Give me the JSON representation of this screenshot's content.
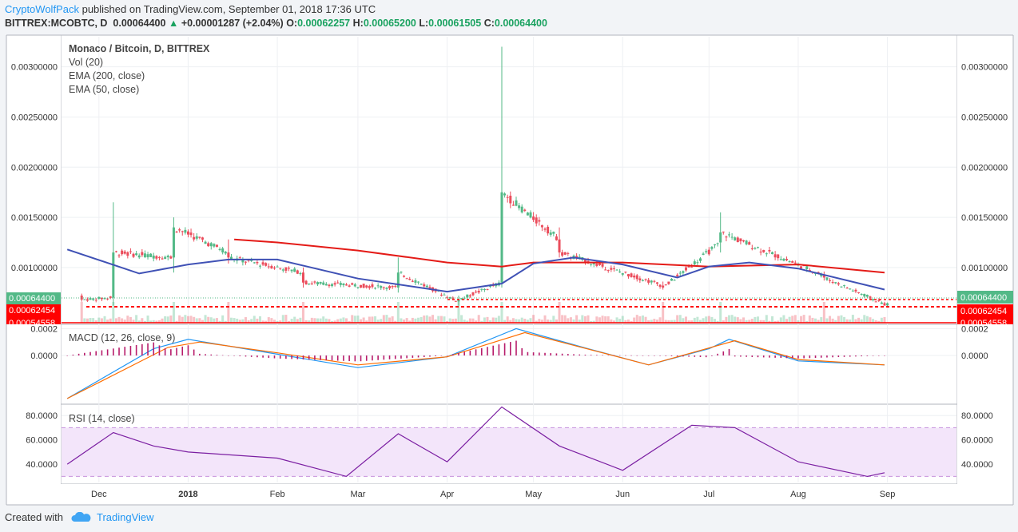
{
  "header": {
    "author": "CryptoWolfPack",
    "published_text": "published on TradingView.com, September 01, 2018 17:36 UTC",
    "symbol": "BITTREX:MCOBTC, D",
    "last": "0.00064400",
    "change": "+0.00001287 (+2.04%)",
    "o_label": "O:",
    "o_value": "0.00062257",
    "h_label": "H:",
    "h_value": "0.00065200",
    "l_label": "L:",
    "l_value": "0.00061505",
    "c_label": "C:",
    "c_value": "0.00064400"
  },
  "legend": {
    "title": "Monaco / Bitcoin, D, BITTREX",
    "vol": "Vol (20)",
    "ema200": "EMA (200, close)",
    "ema50": "EMA (50, close)",
    "macd": "MACD (12, 26, close, 9)",
    "rsi": "RSI (14, close)"
  },
  "price_labels": {
    "current": "0.00064400",
    "level": "0.00062454",
    "hidden": "0.00054558"
  },
  "footer": {
    "created_with": "Created with",
    "brand": "TradingView"
  },
  "colors": {
    "up": "#53b987",
    "down": "#eb4d5c",
    "ema200": "#e41b17",
    "ema50": "#3f51b5",
    "macd": "#2196f3",
    "signal": "#ff6d00",
    "hist": "#b71c6b",
    "rsi": "#7b1fa2",
    "rsi_band": "#f3e5fa",
    "label_green": "#53b987",
    "label_red": "#ff0000"
  },
  "chart_data": [
    {
      "type": "candlestick",
      "title": "Monaco / Bitcoin, D, BITTREX",
      "y_ticks": [
        "0.00300000",
        "0.00250000",
        "0.00200000",
        "0.00150000",
        "0.00100000"
      ],
      "x_ticks": [
        "Dec",
        "2018",
        "Feb",
        "Mar",
        "Apr",
        "May",
        "Jun",
        "Jul",
        "Aug",
        "Sep"
      ],
      "ylim": [
        0.00045,
        0.0033
      ],
      "series": [
        {
          "name": "EMA (200, close)",
          "points": [
            [
              "2018-01-17",
              0.00128
            ],
            [
              "2018-02-01",
              0.00125
            ],
            [
              "2018-03-01",
              0.00117
            ],
            [
              "2018-04-01",
              0.00105
            ],
            [
              "2018-04-20",
              0.00101
            ],
            [
              "2018-05-01",
              0.00105
            ],
            [
              "2018-06-01",
              0.00105
            ],
            [
              "2018-07-01",
              0.00101
            ],
            [
              "2018-08-01",
              0.00103
            ],
            [
              "2018-08-31",
              0.00095
            ]
          ]
        },
        {
          "name": "EMA (50, close)",
          "points": [
            [
              "2017-11-20",
              0.00118
            ],
            [
              "2017-12-15",
              0.00094
            ],
            [
              "2018-01-01",
              0.00103
            ],
            [
              "2018-01-15",
              0.00108
            ],
            [
              "2018-02-01",
              0.00108
            ],
            [
              "2018-03-01",
              0.00089
            ],
            [
              "2018-04-01",
              0.00076
            ],
            [
              "2018-04-20",
              0.00084
            ],
            [
              "2018-05-01",
              0.00104
            ],
            [
              "2018-05-15",
              0.0011
            ],
            [
              "2018-06-01",
              0.00103
            ],
            [
              "2018-06-20",
              0.0009
            ],
            [
              "2018-07-01",
              0.00101
            ],
            [
              "2018-07-15",
              0.00105
            ],
            [
              "2018-08-01",
              0.00099
            ],
            [
              "2018-08-31",
              0.00078
            ]
          ]
        }
      ],
      "candles": [
        {
          "date": "2017-11-25",
          "o": 0.00072,
          "h": 0.00074,
          "l": 0.00066,
          "c": 0.00068
        },
        {
          "date": "2017-12-06",
          "o": 0.0007,
          "h": 0.00165,
          "l": 0.00062,
          "c": 0.00115
        },
        {
          "date": "2017-12-27",
          "o": 0.0011,
          "h": 0.0015,
          "l": 0.00095,
          "c": 0.0014
        },
        {
          "date": "2018-01-15",
          "o": 0.00115,
          "h": 0.00128,
          "l": 0.00104,
          "c": 0.0011
        },
        {
          "date": "2018-02-10",
          "o": 0.00095,
          "h": 0.001,
          "l": 0.0008,
          "c": 0.00085
        },
        {
          "date": "2018-03-15",
          "o": 0.0008,
          "h": 0.0011,
          "l": 0.00075,
          "c": 0.00095
        },
        {
          "date": "2018-04-05",
          "o": 0.00066,
          "h": 0.00072,
          "l": 0.00062,
          "c": 0.00068
        },
        {
          "date": "2018-04-20",
          "o": 0.00085,
          "h": 0.0032,
          "l": 0.0008,
          "c": 0.00175
        },
        {
          "date": "2018-05-10",
          "o": 0.00128,
          "h": 0.0014,
          "l": 0.0011,
          "c": 0.00115
        },
        {
          "date": "2018-06-15",
          "o": 0.00082,
          "h": 0.00086,
          "l": 0.00078,
          "c": 0.0008
        },
        {
          "date": "2018-07-05",
          "o": 0.00125,
          "h": 0.00155,
          "l": 0.00115,
          "c": 0.00135
        },
        {
          "date": "2018-08-10",
          "o": 0.00092,
          "h": 0.00096,
          "l": 0.00087,
          "c": 0.0009
        },
        {
          "date": "2018-09-01",
          "o": 0.00062257,
          "h": 0.000652,
          "l": 0.00061505,
          "c": 0.000644
        }
      ]
    },
    {
      "type": "line",
      "title": "MACD (12, 26, close, 9)",
      "y_ticks": [
        "0.0002",
        "0.0000"
      ],
      "ylim": [
        -0.00035,
        0.00022
      ],
      "series": [
        {
          "name": "MACD",
          "points": [
            [
              "2017-11-20",
              -0.00032
            ],
            [
              "2017-12-20",
              5e-05
            ],
            [
              "2018-01-01",
              0.00012
            ],
            [
              "2018-02-01",
              1e-05
            ],
            [
              "2018-03-01",
              -9e-05
            ],
            [
              "2018-04-01",
              -1e-05
            ],
            [
              "2018-04-25",
              0.0002
            ],
            [
              "2018-05-20",
              5e-05
            ],
            [
              "2018-06-10",
              -7e-05
            ],
            [
              "2018-07-01",
              5e-05
            ],
            [
              "2018-07-08",
              0.00012
            ],
            [
              "2018-08-01",
              -4e-05
            ],
            [
              "2018-08-31",
              -7e-05
            ]
          ]
        },
        {
          "name": "Signal",
          "points": [
            [
              "2017-11-20",
              -0.00032
            ],
            [
              "2017-12-25",
              6e-05
            ],
            [
              "2018-01-05",
              0.0001
            ],
            [
              "2018-02-01",
              2e-05
            ],
            [
              "2018-03-01",
              -7e-05
            ],
            [
              "2018-04-01",
              -1e-05
            ],
            [
              "2018-04-28",
              0.00017
            ],
            [
              "2018-05-25",
              2e-05
            ],
            [
              "2018-06-10",
              -7e-05
            ],
            [
              "2018-07-10",
              0.00011
            ],
            [
              "2018-08-01",
              -3e-05
            ],
            [
              "2018-08-31",
              -7e-05
            ]
          ]
        }
      ]
    },
    {
      "type": "line",
      "title": "RSI (14, close)",
      "y_ticks": [
        "80.0000",
        "60.0000",
        "40.0000"
      ],
      "ylim": [
        25,
        88
      ],
      "band": [
        30,
        70
      ],
      "series": [
        {
          "name": "RSI",
          "points": [
            [
              "2017-11-20",
              40
            ],
            [
              "2017-12-06",
              66
            ],
            [
              "2017-12-20",
              55
            ],
            [
              "2018-01-01",
              50
            ],
            [
              "2018-02-01",
              45
            ],
            [
              "2018-02-25",
              30
            ],
            [
              "2018-03-15",
              65
            ],
            [
              "2018-04-01",
              42
            ],
            [
              "2018-04-20",
              87
            ],
            [
              "2018-05-10",
              55
            ],
            [
              "2018-06-01",
              35
            ],
            [
              "2018-06-25",
              72
            ],
            [
              "2018-07-10",
              70
            ],
            [
              "2018-08-01",
              42
            ],
            [
              "2018-08-25",
              30
            ],
            [
              "2018-08-31",
              33
            ]
          ]
        }
      ]
    }
  ]
}
